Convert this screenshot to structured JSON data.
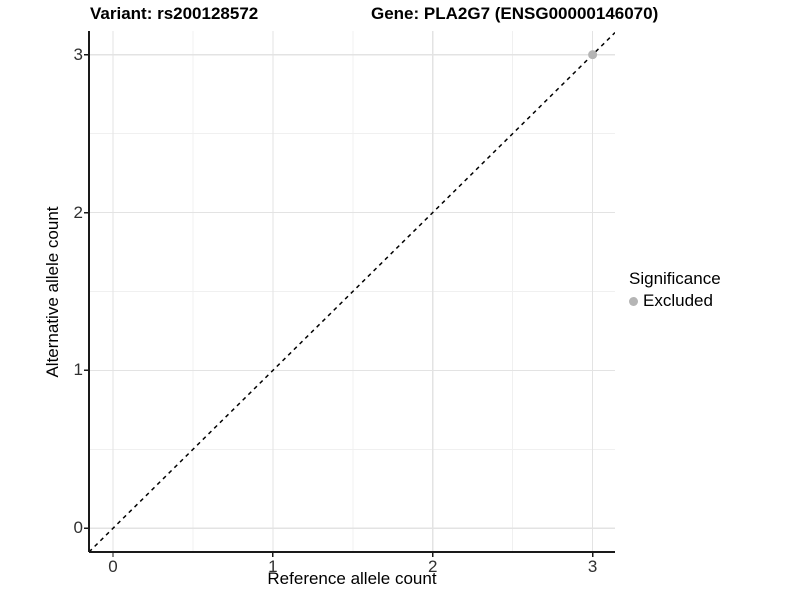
{
  "chart_data": {
    "type": "scatter",
    "title_left": "Variant: rs200128572",
    "title_right": "Gene: PLA2G7 (ENSG00000146070)",
    "xlabel": "Reference allele count",
    "ylabel": "Alternative allele count",
    "x_ticks": [
      0,
      1,
      2,
      3
    ],
    "y_ticks": [
      0,
      1,
      2,
      3
    ],
    "x_minor_ticks": [
      0.5,
      1.5,
      2.5
    ],
    "y_minor_ticks": [
      0.5,
      1.5,
      2.5
    ],
    "xlim": [
      -0.15,
      3.14
    ],
    "ylim": [
      -0.15,
      3.15
    ],
    "grid": "major+minor",
    "points": [
      {
        "x": 3,
        "y": 3,
        "significance": "Excluded"
      }
    ],
    "reference_line": {
      "kind": "identity",
      "intercept": 0,
      "slope": 1,
      "style": "dashed"
    },
    "legend": {
      "title": "Significance",
      "position": "right",
      "items": [
        {
          "label": "Excluded",
          "color": "#b5b5b5"
        }
      ]
    },
    "colors": {
      "point": "#b5b5b5",
      "grid_major": "#e3e3e3",
      "grid_minor": "#f0f0f0",
      "axis": "#1a1a1a",
      "reference_line": "#000000"
    }
  }
}
